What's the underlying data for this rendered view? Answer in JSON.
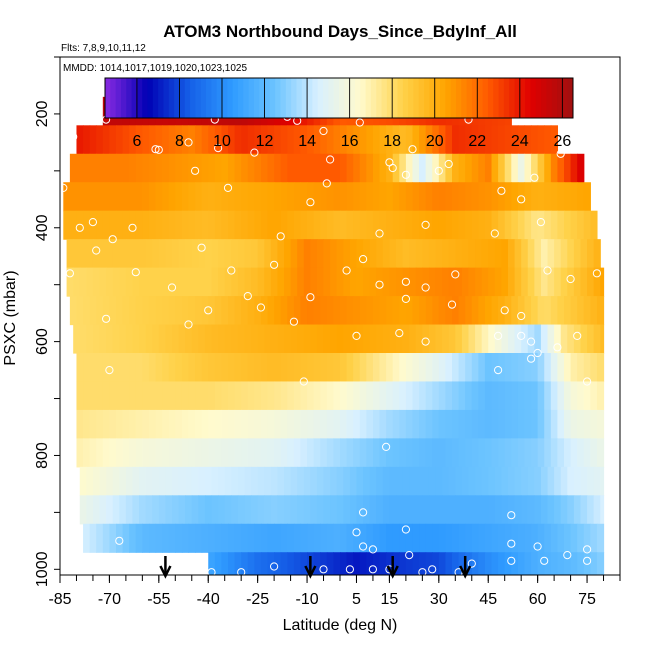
{
  "chart_data": {
    "type": "heatmap",
    "title": "ATOM3 Northbound Days_Since_BdyInf_All",
    "flights_note": "Flts: 7,8,9,10,11,12",
    "dates_note": "MMDD: 1014,1017,1019,1020,1023,1025",
    "xlabel": "Latitude (deg N)",
    "ylabel": "PSXC (mbar)",
    "xlim": [
      -85,
      85
    ],
    "ylim": [
      1010,
      100
    ],
    "x_ticks": [
      -85,
      -70,
      -55,
      -40,
      -25,
      -10,
      5,
      15,
      30,
      45,
      60,
      75
    ],
    "x_tick_labels": [
      "-85",
      "-70",
      "-55",
      "-40",
      "-25",
      "-10",
      "5",
      "15",
      "30",
      "45",
      "60",
      "75"
    ],
    "y_ticks": [
      200,
      400,
      600,
      800,
      1000
    ],
    "y_tick_labels": [
      "200",
      "400",
      "600",
      "800",
      "1000"
    ],
    "colorbar": {
      "range": [
        4.5,
        26.5
      ],
      "ticks": [
        6,
        8,
        10,
        12,
        14,
        16,
        18,
        20,
        22,
        24,
        26
      ],
      "tick_labels": [
        "6",
        "8",
        "10",
        "12",
        "14",
        "16",
        "18",
        "20",
        "22",
        "24",
        "26"
      ],
      "colors": [
        "#8a2be2",
        "#0000b4",
        "#1560e8",
        "#2f9bff",
        "#6cc4ff",
        "#d8f0ff",
        "#fffacd",
        "#ffd24a",
        "#ffa500",
        "#ff5a00",
        "#e00000",
        "#a01010"
      ]
    },
    "pressure_levels": [
      195,
      245,
      295,
      345,
      395,
      445,
      495,
      545,
      595,
      645,
      695,
      745,
      795,
      845,
      895,
      945,
      995
    ],
    "rows": [
      {
        "p": 195,
        "lat_min": -72,
        "lat_max": 52,
        "lats": [
          -72,
          -50,
          -30,
          -15,
          0,
          15,
          30,
          52
        ],
        "vals": [
          25.5,
          25.3,
          25.6,
          24.5,
          22.5,
          22.8,
          23.5,
          23.0
        ]
      },
      {
        "p": 245,
        "lat_min": -80,
        "lat_max": 66,
        "lats": [
          -80,
          -60,
          -45,
          -30,
          -10,
          5,
          20,
          35,
          50,
          66
        ],
        "vals": [
          24.0,
          22.5,
          21.5,
          23.5,
          22.5,
          21.0,
          19.5,
          23.5,
          23.0,
          22.5
        ]
      },
      {
        "p": 295,
        "lat_min": -82,
        "lat_max": 74,
        "lats": [
          -82,
          -65,
          -50,
          -35,
          -15,
          0,
          15,
          25,
          35,
          45,
          55,
          65,
          74
        ],
        "vals": [
          21.5,
          21.5,
          21.0,
          20.5,
          22.5,
          22.5,
          20.0,
          14.5,
          20.0,
          21.5,
          15.5,
          21.5,
          25.0
        ]
      },
      {
        "p": 345,
        "lat_min": -84,
        "lat_max": 76,
        "lats": [
          -84,
          -60,
          -40,
          -20,
          0,
          15,
          30,
          45,
          60,
          76
        ],
        "vals": [
          21.0,
          21.0,
          20.0,
          20.5,
          21.0,
          20.5,
          21.5,
          21.0,
          20.0,
          20.5
        ]
      },
      {
        "p": 395,
        "lat_min": -84,
        "lat_max": 78,
        "lats": [
          -84,
          -60,
          -40,
          -20,
          0,
          15,
          30,
          45,
          60,
          78
        ],
        "vals": [
          20.0,
          20.0,
          19.5,
          20.5,
          19.5,
          20.0,
          20.5,
          20.0,
          17.5,
          19.5
        ]
      },
      {
        "p": 445,
        "lat_min": -83,
        "lat_max": 79,
        "lats": [
          -83,
          -60,
          -40,
          -25,
          -10,
          5,
          20,
          35,
          50,
          62,
          79
        ],
        "vals": [
          19.0,
          19.0,
          18.5,
          19.0,
          21.5,
          20.5,
          19.5,
          20.0,
          20.5,
          17.0,
          20.0
        ]
      },
      {
        "p": 495,
        "lat_min": -83,
        "lat_max": 80,
        "lats": [
          -83,
          -60,
          -40,
          -25,
          -10,
          5,
          20,
          35,
          50,
          62,
          80
        ],
        "vals": [
          18.0,
          18.5,
          18.5,
          19.5,
          21.5,
          20.5,
          21.0,
          21.5,
          20.5,
          17.5,
          20.5
        ]
      },
      {
        "p": 545,
        "lat_min": -82,
        "lat_max": 80,
        "lats": [
          -82,
          -60,
          -40,
          -25,
          -10,
          5,
          20,
          35,
          50,
          62,
          80
        ],
        "vals": [
          18.0,
          18.5,
          19.0,
          20.0,
          21.5,
          21.0,
          20.5,
          21.5,
          20.0,
          18.0,
          20.0
        ]
      },
      {
        "p": 595,
        "lat_min": -81,
        "lat_max": 80,
        "lats": [
          -81,
          -60,
          -40,
          -20,
          0,
          20,
          35,
          50,
          60,
          68,
          80
        ],
        "vals": [
          18.0,
          18.5,
          19.5,
          20.0,
          20.5,
          20.0,
          19.0,
          15.5,
          13.5,
          17.5,
          19.5
        ]
      },
      {
        "p": 645,
        "lat_min": -80,
        "lat_max": 80,
        "lats": [
          -80,
          -60,
          -40,
          -20,
          0,
          15,
          30,
          45,
          60,
          70,
          80
        ],
        "vals": [
          18.0,
          18.0,
          19.0,
          19.5,
          19.0,
          17.0,
          15.0,
          12.5,
          13.0,
          17.0,
          18.0
        ]
      },
      {
        "p": 695,
        "lat_min": -80,
        "lat_max": 80,
        "lats": [
          -80,
          -60,
          -40,
          -20,
          0,
          15,
          30,
          45,
          60,
          70,
          80
        ],
        "vals": [
          18.0,
          18.0,
          18.0,
          17.5,
          16.5,
          15.0,
          13.5,
          12.0,
          12.5,
          16.0,
          17.0
        ]
      },
      {
        "p": 745,
        "lat_min": -80,
        "lat_max": 80,
        "lats": [
          -80,
          -60,
          -40,
          -20,
          0,
          15,
          30,
          45,
          60,
          70,
          80
        ],
        "vals": [
          17.5,
          17.0,
          16.5,
          16.0,
          15.0,
          13.5,
          12.5,
          12.0,
          12.5,
          15.5,
          16.0
        ]
      },
      {
        "p": 795,
        "lat_min": -80,
        "lat_max": 80,
        "lats": [
          -80,
          -60,
          -40,
          -20,
          0,
          15,
          30,
          45,
          60,
          70,
          80
        ],
        "vals": [
          17.0,
          16.0,
          15.5,
          15.0,
          13.5,
          12.5,
          12.0,
          12.5,
          13.0,
          14.5,
          15.5
        ]
      },
      {
        "p": 845,
        "lat_min": -79,
        "lat_max": 80,
        "lats": [
          -79,
          -60,
          -40,
          -20,
          0,
          15,
          30,
          45,
          60,
          70,
          80
        ],
        "vals": [
          16.5,
          15.0,
          14.5,
          14.0,
          13.0,
          12.0,
          12.0,
          12.5,
          13.0,
          14.5,
          15.0
        ]
      },
      {
        "p": 895,
        "lat_min": -79,
        "lat_max": 80,
        "lats": [
          -79,
          -60,
          -40,
          -20,
          0,
          15,
          30,
          45,
          60,
          70,
          80
        ],
        "vals": [
          15.5,
          13.5,
          12.5,
          13.0,
          12.5,
          11.5,
          11.5,
          11.5,
          12.0,
          13.0,
          14.5
        ]
      },
      {
        "p": 945,
        "lat_min": -78,
        "lat_max": 80,
        "lats": [
          -78,
          -60,
          -40,
          -20,
          0,
          15,
          30,
          45,
          60,
          70,
          80
        ],
        "vals": [
          14.5,
          12.0,
          11.5,
          11.0,
          11.5,
          10.5,
          10.5,
          11.0,
          11.5,
          12.5,
          13.5
        ]
      },
      {
        "p": 995,
        "lat_min": -40,
        "lat_max": 80,
        "lats": [
          -40,
          -25,
          -10,
          5,
          15,
          30,
          45,
          60,
          70,
          80
        ],
        "vals": [
          11.0,
          9.0,
          8.0,
          7.0,
          7.5,
          8.0,
          10.0,
          11.5,
          12.0,
          13.0
        ]
      }
    ],
    "sample_points": [
      [
        -78,
        210
      ],
      [
        -71,
        210
      ],
      [
        -64,
        185
      ],
      [
        -38,
        210
      ],
      [
        -16,
        205
      ],
      [
        -13,
        212
      ],
      [
        -11,
        198
      ],
      [
        -5,
        230
      ],
      [
        6,
        215
      ],
      [
        19,
        192
      ],
      [
        39,
        210
      ],
      [
        -81,
        240
      ],
      [
        -46,
        250
      ],
      [
        -37,
        260
      ],
      [
        -56,
        262
      ],
      [
        -55,
        263
      ],
      [
        -26,
        268
      ],
      [
        -3,
        280
      ],
      [
        15,
        285
      ],
      [
        16,
        295
      ],
      [
        22,
        262
      ],
      [
        33,
        288
      ],
      [
        59,
        312
      ],
      [
        67,
        270
      ],
      [
        -84,
        330
      ],
      [
        -44,
        300
      ],
      [
        -34,
        330
      ],
      [
        -4,
        322
      ],
      [
        -9,
        355
      ],
      [
        20,
        307
      ],
      [
        30,
        300
      ],
      [
        49,
        335
      ],
      [
        55,
        350
      ],
      [
        61,
        390
      ],
      [
        -75,
        390
      ],
      [
        -79,
        400
      ],
      [
        -63,
        400
      ],
      [
        -42,
        435
      ],
      [
        -18,
        415
      ],
      [
        12,
        410
      ],
      [
        26,
        395
      ],
      [
        47,
        410
      ],
      [
        -74,
        440
      ],
      [
        -69,
        420
      ],
      [
        -82,
        480
      ],
      [
        -62,
        478
      ],
      [
        -33,
        475
      ],
      [
        -20,
        465
      ],
      [
        2,
        475
      ],
      [
        7,
        455
      ],
      [
        12,
        500
      ],
      [
        20,
        495
      ],
      [
        26,
        505
      ],
      [
        35,
        482
      ],
      [
        63,
        475
      ],
      [
        70,
        490
      ],
      [
        78,
        480
      ],
      [
        -51,
        505
      ],
      [
        -40,
        545
      ],
      [
        -28,
        520
      ],
      [
        -9,
        522
      ],
      [
        20,
        525
      ],
      [
        34,
        535
      ],
      [
        50,
        545
      ],
      [
        55,
        555
      ],
      [
        -71,
        560
      ],
      [
        -46,
        570
      ],
      [
        -24,
        540
      ],
      [
        -14,
        565
      ],
      [
        5,
        590
      ],
      [
        18,
        585
      ],
      [
        26,
        600
      ],
      [
        48,
        590
      ],
      [
        55,
        590
      ],
      [
        58,
        600
      ],
      [
        60,
        620
      ],
      [
        66,
        610
      ],
      [
        72,
        590
      ],
      [
        58,
        630
      ],
      [
        -70,
        650
      ],
      [
        -11,
        670
      ],
      [
        48,
        650
      ],
      [
        75,
        670
      ],
      [
        14,
        785
      ],
      [
        7,
        900
      ],
      [
        52,
        905
      ],
      [
        5,
        935
      ],
      [
        20,
        930
      ],
      [
        -67,
        950
      ],
      [
        7,
        960
      ],
      [
        10,
        965
      ],
      [
        21,
        975
      ],
      [
        52,
        955
      ],
      [
        60,
        960
      ],
      [
        69,
        975
      ],
      [
        75,
        965
      ],
      [
        -39,
        1005
      ],
      [
        -20,
        995
      ],
      [
        -5,
        1000
      ],
      [
        3,
        1000
      ],
      [
        10,
        1000
      ],
      [
        15,
        1000
      ],
      [
        28,
        1000
      ],
      [
        40,
        990
      ],
      [
        52,
        985
      ],
      [
        62,
        985
      ],
      [
        75,
        985
      ],
      [
        -30,
        1005
      ],
      [
        25,
        1005
      ],
      [
        36,
        1005
      ]
    ],
    "arrows_lat": [
      -53,
      -9,
      16,
      38
    ]
  }
}
